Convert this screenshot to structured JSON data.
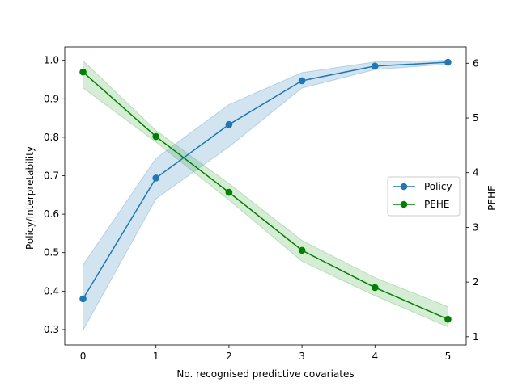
{
  "chart_data": {
    "type": "line",
    "xlabel": "No. recognised predictive covariates",
    "ylabel_left": "Policy/Interpretability",
    "ylabel_right": "PEHE",
    "x": [
      0,
      1,
      2,
      3,
      4,
      5
    ],
    "xticks": [
      "0",
      "1",
      "2",
      "3",
      "4",
      "5"
    ],
    "xlim": [
      -0.25,
      5.25
    ],
    "ylim_left": [
      0.26,
      1.035
    ],
    "yticks_left": [
      "0.3",
      "0.4",
      "0.5",
      "0.6",
      "0.7",
      "0.8",
      "0.9",
      "1.0"
    ],
    "ylim_right": [
      0.85,
      6.3
    ],
    "yticks_right": [
      "1",
      "2",
      "3",
      "4",
      "5",
      "6"
    ],
    "legend_position": "center-right",
    "series": [
      {
        "name": "Policy",
        "axis": "left",
        "color": "#1f77b4",
        "band_color": "#1f77b4",
        "values": [
          0.38,
          0.694,
          0.833,
          0.947,
          0.985,
          0.995
        ],
        "lower": [
          0.298,
          0.64,
          0.775,
          0.928,
          0.976,
          0.99
        ],
        "upper": [
          0.468,
          0.745,
          0.885,
          0.968,
          0.996,
          1.0
        ]
      },
      {
        "name": "PEHE",
        "axis": "right",
        "color": "#008000",
        "band_color": "#2ca02c",
        "values": [
          5.84,
          4.66,
          3.64,
          2.58,
          1.9,
          1.32
        ],
        "lower": [
          5.55,
          4.56,
          3.5,
          2.38,
          1.75,
          1.18
        ],
        "upper": [
          6.05,
          4.77,
          3.8,
          2.76,
          2.08,
          1.55
        ]
      }
    ]
  }
}
